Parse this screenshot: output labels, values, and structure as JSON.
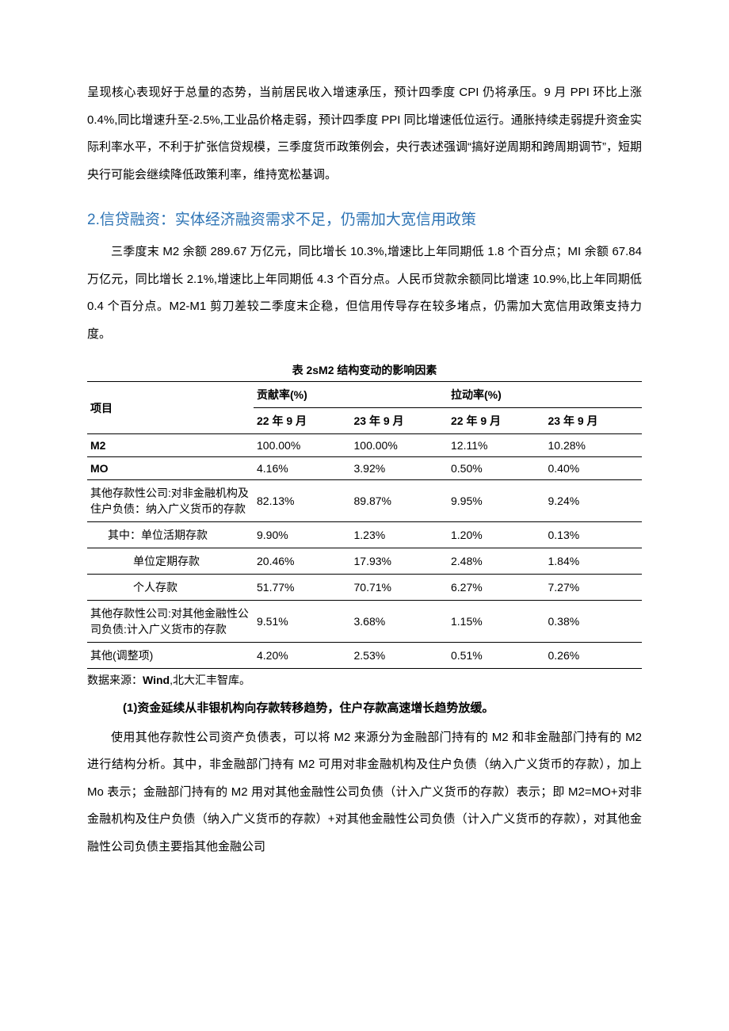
{
  "para1": "呈现核心表现好于总量的态势，当前居民收入增速承压，预计四季度 CPI 仍将承压。9 月 PPI 环比上涨 0.4%,同比增速升至-2.5%,工业品价格走弱，预计四季度 PPI 同比增速低位运行。通胀持续走弱提升资金实际利率水平，不利于扩张信贷规模，三季度货币政策例会，央行表述强调“搞好逆周期和跨周期调节”，短期央行可能会继续降低政策利率，维持宽松基调。",
  "heading2": "2.信贷融资：实体经济融资需求不足，仍需加大宽信用政策",
  "para2": "三季度末 M2 余额 289.67 万亿元，同比增长 10.3%,增速比上年同期低 1.8 个百分点；MI 余额 67.84 万亿元，同比增长 2.1%,增速比上年同期低 4.3 个百分点。人民币贷款余额同比增速 10.9%,比上年同期低 0.4 个百分点。M2-M1 剪刀差较二季度末企稳，但信用传导存在较多堵点，仍需加大宽信用政策支持力度。",
  "table": {
    "caption": "表 2sM2 结构变动的影响因素",
    "header_groups": {
      "label": "项目",
      "g1": "贡献率(%)",
      "g2": "拉动率(%)"
    },
    "sub_headers": {
      "c1": "22 年 9 月",
      "c2": "23 年 9 月",
      "c3": "22 年 9 月",
      "c4": "23 年 9 月"
    },
    "rows": [
      {
        "label": "M2",
        "bold": true,
        "c1": "100.00%",
        "c2": "100.00%",
        "c3": "12.11%",
        "c4": "10.28%"
      },
      {
        "label": "MO",
        "bold": true,
        "c1": "4.16%",
        "c2": "3.92%",
        "c3": "0.50%",
        "c4": "0.40%"
      },
      {
        "label": "其他存款性公司:对非金融机构及住户负债：纳入广义货币的存款",
        "c1": "82.13%",
        "c2": "89.87%",
        "c3": "9.95%",
        "c4": "9.24%"
      },
      {
        "label": "其中：单位活期存款",
        "indent": 1,
        "c1": "9.90%",
        "c2": "1.23%",
        "c3": "1.20%",
        "c4": "0.13%"
      },
      {
        "label": "单位定期存款",
        "indent": 2,
        "c1": "20.46%",
        "c2": "17.93%",
        "c3": "2.48%",
        "c4": "1.84%"
      },
      {
        "label": "个人存款",
        "indent": 2,
        "c1": "51.77%",
        "c2": "70.71%",
        "c3": "6.27%",
        "c4": "7.27%"
      },
      {
        "label": "其他存款性公司:对其他金融性公司负债:计入广义货市的存款",
        "c1": "9.51%",
        "c2": "3.68%",
        "c3": "1.15%",
        "c4": "0.38%"
      },
      {
        "label": "其他(调整项)",
        "last": true,
        "c1": "4.20%",
        "c2": "2.53%",
        "c3": "0.51%",
        "c4": "0.26%"
      }
    ]
  },
  "source_prefix": "数据来源：",
  "source_bold": "Wind",
  "source_suffix": ",北大汇丰智库。",
  "sub_section": "(1)资金延续从非银机构向存款转移趋势，住户存款高速增长趋势放缓。",
  "para3": "使用其他存款性公司资产负债表，可以将 M2 来源分为金融部门持有的 M2 和非金融部门持有的 M2 进行结构分析。其中，非金融部门持有 M2 可用对非金融机构及住户负债（纳入广义货币的存款），加上 Mo 表示；金融部门持有的 M2 用对其他金融性公司负债（计入广义货币的存款）表示；即 M2=MO+对非金融机构及住户负债（纳入广义货币的存款）+对其他金融性公司负债（计入广义货币的存款），对其他金融性公司负债主要指其他金融公司"
}
